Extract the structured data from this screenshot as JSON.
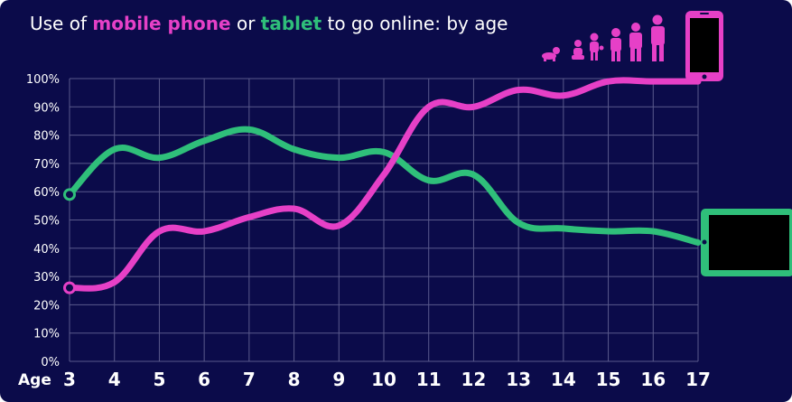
{
  "title": {
    "prefix": "Use of",
    "series1": "mobile phone",
    "middle": "or",
    "series2": "tablet",
    "suffix": "to go online: by age"
  },
  "axis": {
    "x_prefix": "Age"
  },
  "colors": {
    "background": "#0b0b4a",
    "mobile": "#e640c7",
    "tablet": "#2fbf7a",
    "grid": "#5a5a8c",
    "text": "#ffffff"
  },
  "icons": {
    "people": "growing-people-icon",
    "phone": "mobile-phone-icon",
    "tablet": "tablet-icon"
  },
  "chart_data": {
    "type": "line",
    "x": [
      3,
      4,
      5,
      6,
      7,
      8,
      9,
      10,
      11,
      12,
      13,
      14,
      15,
      16,
      17
    ],
    "x_tick_labels": [
      "3",
      "4",
      "5",
      "6",
      "7",
      "8",
      "9",
      "10",
      "11",
      "12",
      "13",
      "14",
      "15",
      "16",
      "17"
    ],
    "y_tick_labels": [
      "0%",
      "10%",
      "20%",
      "30%",
      "40%",
      "50%",
      "60%",
      "70%",
      "80%",
      "90%",
      "100%"
    ],
    "ylim": [
      0,
      100
    ],
    "xlim": [
      3,
      17
    ],
    "grid": true,
    "series": [
      {
        "name": "mobile phone",
        "values": [
          26,
          28,
          46,
          46,
          51,
          54,
          48,
          66,
          90,
          90,
          96,
          94,
          99,
          99,
          99
        ]
      },
      {
        "name": "tablet",
        "values": [
          59,
          75,
          72,
          78,
          82,
          75,
          72,
          74,
          64,
          66,
          49,
          47,
          46,
          46,
          42
        ]
      }
    ]
  }
}
